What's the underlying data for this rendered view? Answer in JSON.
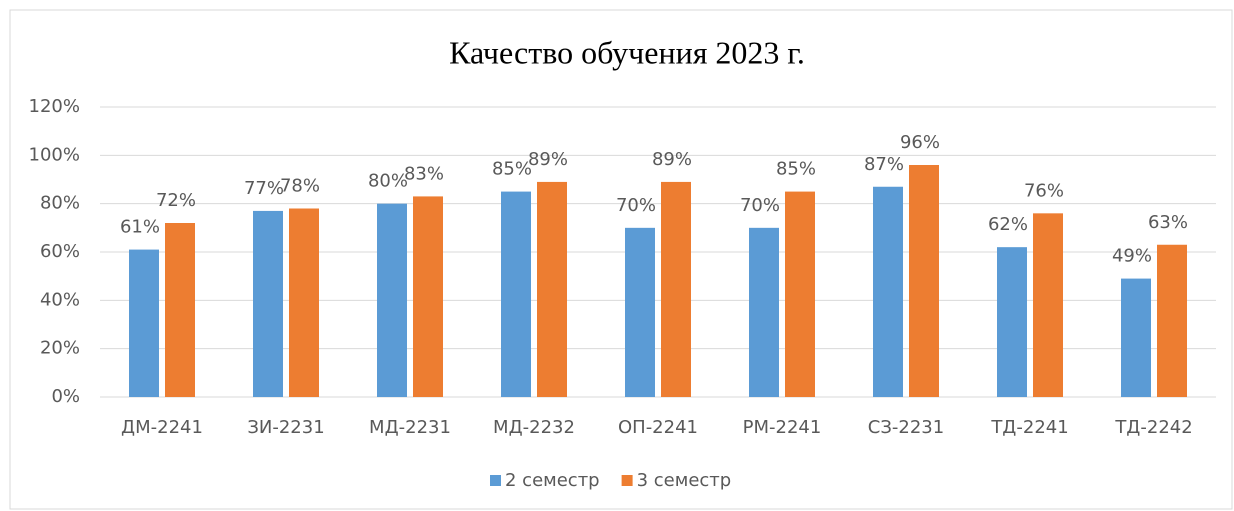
{
  "chart_data": {
    "type": "bar",
    "title": "Качество  обучения 2023 г.",
    "categories": [
      "ДМ-2241",
      "ЗИ-2231",
      "МД-2231",
      "МД-2232",
      "ОП-2241",
      "РМ-2241",
      "СЗ-2231",
      "ТД-2241",
      "ТД-2242"
    ],
    "series": [
      {
        "name": "2 семестр",
        "color": "#5b9bd5",
        "values": [
          61,
          77,
          80,
          85,
          70,
          70,
          87,
          62,
          49
        ],
        "value_labels": [
          "61%",
          "77%",
          "80%",
          "85%",
          "70%",
          "70%",
          "87%",
          "62%",
          "49%"
        ]
      },
      {
        "name": "3 семестр",
        "color": "#ed7d31",
        "values": [
          72,
          78,
          83,
          89,
          89,
          85,
          96,
          76,
          63
        ],
        "value_labels": [
          "72%",
          "78%",
          "83%",
          "89%",
          "89%",
          "85%",
          "96%",
          "76%",
          "63%"
        ]
      }
    ],
    "ylim": [
      0,
      120
    ],
    "yticks": [
      {
        "value": 0,
        "label": "0%"
      },
      {
        "value": 20,
        "label": "20%"
      },
      {
        "value": 40,
        "label": "40%"
      },
      {
        "value": 60,
        "label": "60%"
      },
      {
        "value": 80,
        "label": "80%"
      },
      {
        "value": 100,
        "label": "100%"
      },
      {
        "value": 120,
        "label": "120%"
      }
    ],
    "grid": true,
    "legend": "bottom"
  }
}
